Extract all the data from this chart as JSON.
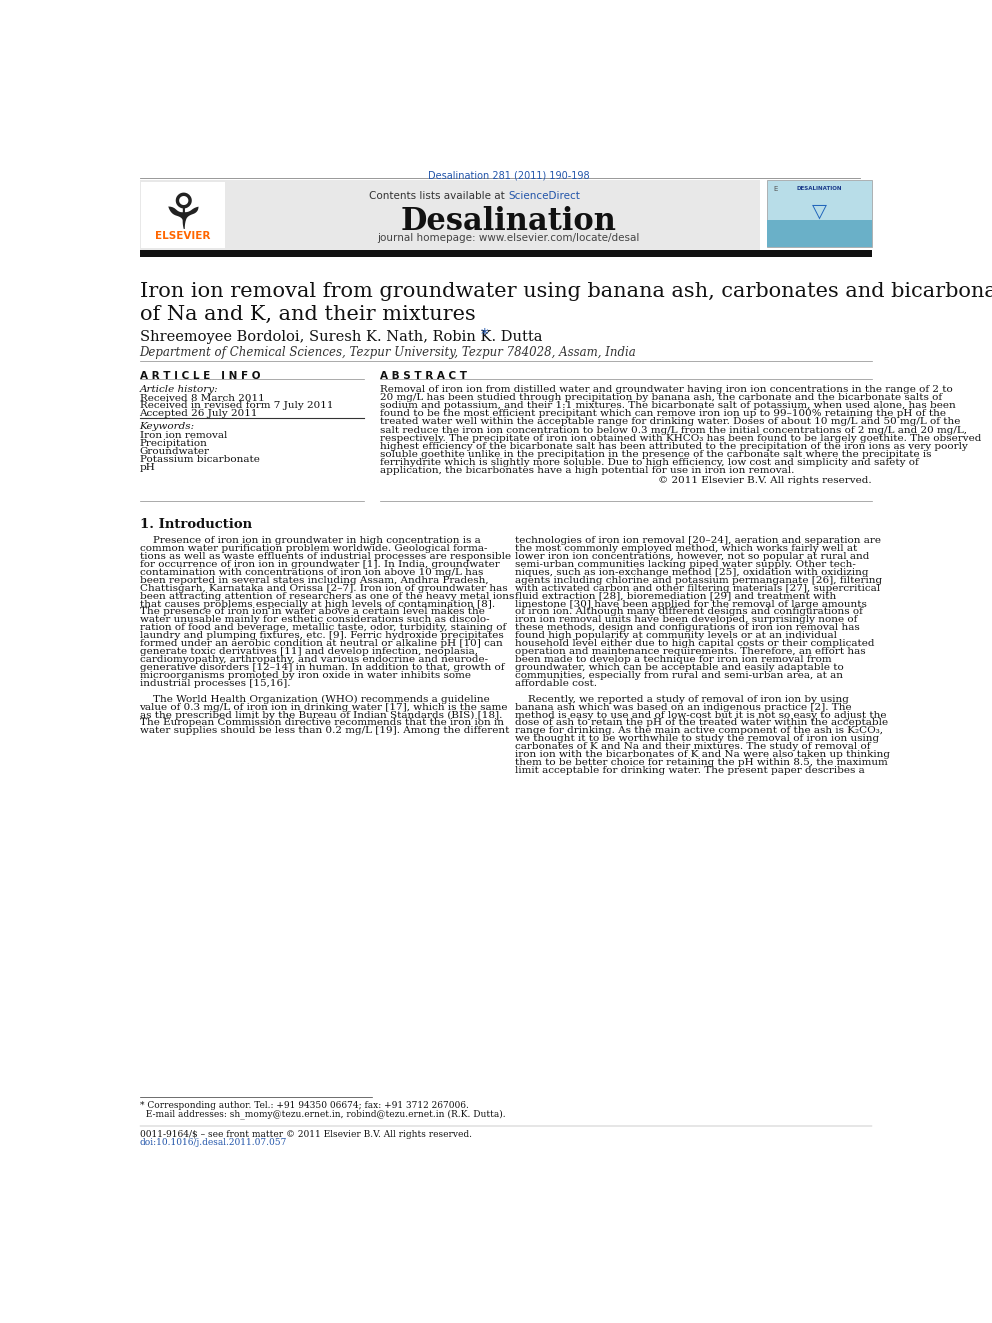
{
  "page_width": 9.92,
  "page_height": 13.23,
  "bg_color": "#ffffff",
  "journal_ref": "Desalination 281 (2011) 190-198",
  "journal_ref_color": "#2255aa",
  "journal_name": "Desalination",
  "contents_text": "Contents lists available at ",
  "science_direct": "ScienceDirect",
  "journal_homepage": "journal homepage: www.elsevier.com/locate/desal",
  "header_bg": "#e8e8e8",
  "elsevier_color": "#FF6600",
  "paper_title": "Iron ion removal from groundwater using banana ash, carbonates and bicarbonates\nof Na and K, and their mixtures",
  "authors": "Shreemoyee Bordoloi, Suresh K. Nath, Robin K. Dutta",
  "affiliation": "Department of Chemical Sciences, Tezpur University, Tezpur 784028, Assam, India",
  "article_info_header": "A R T I C L E   I N F O",
  "abstract_header": "A B S T R A C T",
  "article_history_label": "Article history:",
  "received1": "Received 8 March 2011",
  "received2": "Received in revised form 7 July 2011",
  "accepted": "Accepted 26 July 2011",
  "keywords_label": "Keywords:",
  "keywords": [
    "Iron ion removal",
    "Precipitation",
    "Groundwater",
    "Potassium bicarbonate",
    "pH"
  ],
  "abstract_lines": [
    "Removal of iron ion from distilled water and groundwater having iron ion concentrations in the range of 2 to",
    "20 mg/L has been studied through precipitation by banana ash, the carbonate and the bicarbonate salts of",
    "sodium and potassium, and their 1:1 mixtures. The bicarbonate salt of potassium, when used alone, has been",
    "found to be the most efficient precipitant which can remove iron ion up to 99–100% retaining the pH of the",
    "treated water well within the acceptable range for drinking water. Doses of about 10 mg/L and 50 mg/L of the",
    "salt reduce the iron ion concentration to below 0.3 mg/L from the initial concentrations of 2 mg/L and 20 mg/L,",
    "respectively. The precipitate of iron ion obtained with KHCO₃ has been found to be largely goethite. The observed",
    "highest efficiency of the bicarbonate salt has been attributed to the precipitation of the iron ions as very poorly",
    "soluble goethite unlike in the precipitation in the presence of the carbonate salt where the precipitate is",
    "ferrihydrite which is slightly more soluble. Due to high efficiency, low cost and simplicity and safety of",
    "application, the bicarbonates have a high potential for use in iron ion removal."
  ],
  "copyright": "© 2011 Elsevier B.V. All rights reserved.",
  "section1_title": "1. Introduction",
  "intro_col1_lines": [
    "    Presence of iron ion in groundwater in high concentration is a",
    "common water purification problem worldwide. Geological forma-",
    "tions as well as waste effluents of industrial processes are responsible",
    "for occurrence of iron ion in groundwater [1]. In India, groundwater",
    "contamination with concentrations of iron ion above 10 mg/L has",
    "been reported in several states including Assam, Andhra Pradesh,",
    "Chattisgarh, Karnataka and Orissa [2–7]. Iron ion of groundwater has",
    "been attracting attention of researchers as one of the heavy metal ions",
    "that causes problems especially at high levels of contamination [8].",
    "The presence of iron ion in water above a certain level makes the",
    "water unusable mainly for esthetic considerations such as discolo-",
    "ration of food and beverage, metallic taste, odor, turbidity, staining of",
    "laundry and plumping fixtures, etc. [9]. Ferric hydroxide precipitates",
    "formed under an aerobic condition at neutral or alkaline pH [10] can",
    "generate toxic derivatives [11] and develop infection, neoplasia,",
    "cardiomyopathy, arthropathy, and various endocrine and neurode-",
    "generative disorders [12–14] in human. In addition to that, growth of",
    "microorganisms promoted by iron oxide in water inhibits some",
    "industrial processes [15,16].",
    "",
    "    The World Health Organization (WHO) recommends a guideline",
    "value of 0.3 mg/L of iron ion in drinking water [17], which is the same",
    "as the prescribed limit by the Bureau of Indian Standards (BIS) [18].",
    "The European Commission directive recommends that the iron ion in",
    "water supplies should be less than 0.2 mg/L [19]. Among the different"
  ],
  "intro_col2_lines": [
    "technologies of iron ion removal [20–24], aeration and separation are",
    "the most commonly employed method, which works fairly well at",
    "lower iron ion concentrations, however, not so popular at rural and",
    "semi-urban communities lacking piped water supply. Other tech-",
    "niques, such as ion-exchange method [25], oxidation with oxidizing",
    "agents including chlorine and potassium permanganate [26], filtering",
    "with activated carbon and other filtering materials [27], supercritical",
    "fluid extraction [28], bioremediation [29] and treatment with",
    "limestone [30] have been applied for the removal of large amounts",
    "of iron ion. Although many different designs and configurations of",
    "iron ion removal units have been developed, surprisingly none of",
    "these methods, design and configurations of iron ion removal has",
    "found high popularity at community levels or at an individual",
    "household level either due to high capital costs or their complicated",
    "operation and maintenance requirements. Therefore, an effort has",
    "been made to develop a technique for iron ion removal from",
    "groundwater, which can be acceptable and easily adaptable to",
    "communities, especially from rural and semi-urban area, at an",
    "affordable cost.",
    "",
    "    Recently, we reported a study of removal of iron ion by using",
    "banana ash which was based on an indigenous practice [2]. The",
    "method is easy to use and of low-cost but it is not so easy to adjust the",
    "dose of ash to retain the pH of the treated water within the acceptable",
    "range for drinking. As the main active component of the ash is K₂CO₃,",
    "we thought it to be worthwhile to study the removal of iron ion using",
    "carbonates of K and Na and their mixtures. The study of removal of",
    "iron ion with the bicarbonates of K and Na were also taken up thinking",
    "them to be better choice for retaining the pH within 8.5, the maximum",
    "limit acceptable for drinking water. The present paper describes a"
  ],
  "footnote1": "* Corresponding author. Tel.: +91 94350 06674; fax: +91 3712 267006.",
  "footnote2": "  E-mail addresses: sh_momy@tezu.ernet.in, robind@tezu.ernet.in (R.K. Dutta).",
  "footnote3": "0011-9164/$ – see front matter © 2011 Elsevier B.V. All rights reserved.",
  "footnote4": "doi:10.1016/j.desal.2011.07.057",
  "link_color": "#2255aa",
  "text_color": "#111111"
}
